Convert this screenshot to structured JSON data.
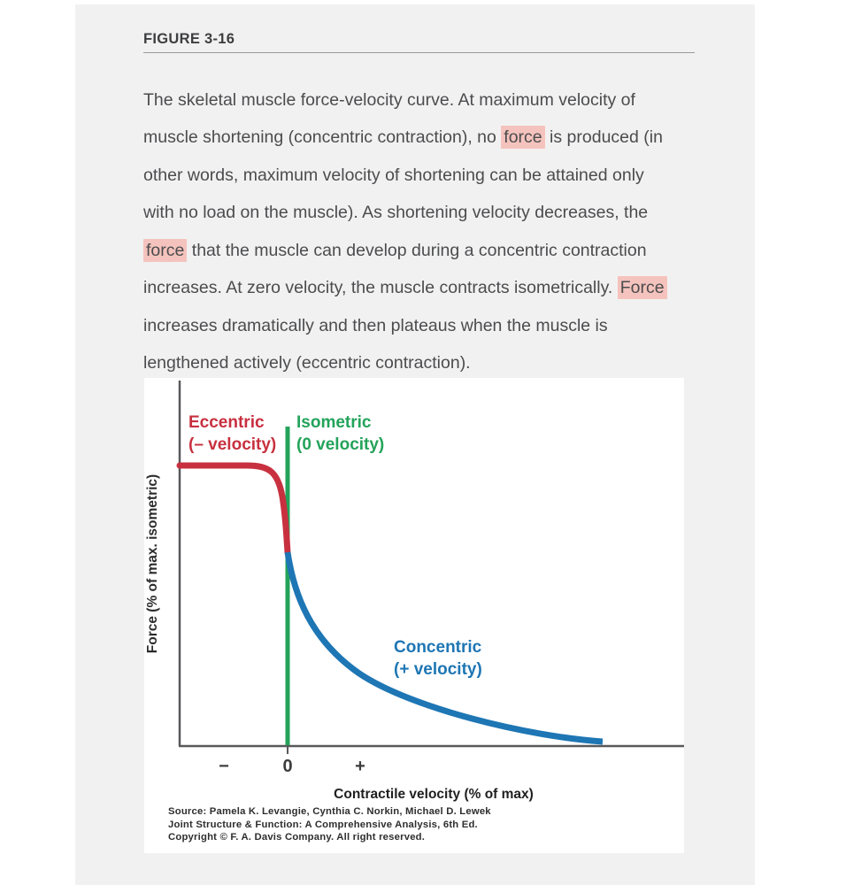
{
  "page": {
    "background": "#ffffff",
    "card_background": "#f2f1f1",
    "highlight_color": "#f5c3bd"
  },
  "figure": {
    "label": "FIGURE 3-16",
    "caption_segments": [
      {
        "text": "The skeletal muscle force-velocity curve. At maximum velocity of muscle shortening (concentric contraction), no "
      },
      {
        "text": "force",
        "highlight": true
      },
      {
        "text": " is produced (in other words, maximum velocity of shortening can be attained only with no load on the muscle). As shortening velocity decreases, the "
      },
      {
        "text": "force",
        "highlight": true
      },
      {
        "text": " that the muscle can develop during a concentric contraction increases. At zero velocity, the muscle contracts isometrically. "
      },
      {
        "text": "Force",
        "highlight": true
      },
      {
        "text": " increases dramatically and then plateaus when the muscle is lengthened actively (eccentric contraction)."
      }
    ]
  },
  "chart": {
    "y_axis_label": "Force (% of max. isometric)",
    "x_axis_label": "Contractile velocity (% of max)",
    "ticks": [
      "−",
      "0",
      "+"
    ],
    "labels": {
      "eccentric": {
        "line1": "Eccentric",
        "line2": "(– velocity)",
        "color": "#c8303f"
      },
      "isometric": {
        "line1": "Isometric",
        "line2": "(0 velocity)",
        "color": "#23a35a"
      },
      "concentric": {
        "line1": "Concentric",
        "line2": "(+ velocity)",
        "color": "#1e76b4"
      }
    },
    "source_lines": [
      "Source: Pamela K. Levangie, Cynthia C. Norkin, Michael D. Lewek",
      "Joint Structure & Function: A Comprehensive Analysis, 6th Ed.",
      "Copyright © F. A. Davis Company. All right reserved."
    ]
  },
  "chart_data": {
    "type": "line",
    "title": "Skeletal muscle force-velocity curve",
    "xlabel": "Contractile velocity (% of max)",
    "ylabel": "Force (% of max. isometric)",
    "x_ticks": [
      "−",
      "0",
      "+"
    ],
    "xlim": [
      -100,
      120
    ],
    "ylim": [
      0,
      160
    ],
    "grid": false,
    "legend_position": "inline-annotations",
    "reference_line": {
      "name": "Isometric (0 velocity)",
      "x": 0,
      "color": "#23a35a"
    },
    "series": [
      {
        "name": "Eccentric (− velocity)",
        "color": "#c8303f",
        "points": [
          [
            -100,
            145
          ],
          [
            -60,
            145
          ],
          [
            -40,
            145
          ],
          [
            -25,
            143
          ],
          [
            -15,
            134
          ],
          [
            -8,
            120
          ],
          [
            -3,
            107
          ],
          [
            0,
            100
          ]
        ]
      },
      {
        "name": "Concentric (+ velocity)",
        "color": "#1e76b4",
        "points": [
          [
            0,
            100
          ],
          [
            5,
            74
          ],
          [
            10,
            57
          ],
          [
            15,
            45
          ],
          [
            20,
            36
          ],
          [
            30,
            24
          ],
          [
            40,
            16
          ],
          [
            50,
            11
          ],
          [
            60,
            7
          ],
          [
            70,
            4
          ],
          [
            80,
            2
          ],
          [
            90,
            1
          ],
          [
            100,
            0
          ]
        ]
      }
    ],
    "annotations": [
      "Eccentric (– velocity)",
      "Isometric (0 velocity)",
      "Concentric (+ velocity)"
    ]
  }
}
